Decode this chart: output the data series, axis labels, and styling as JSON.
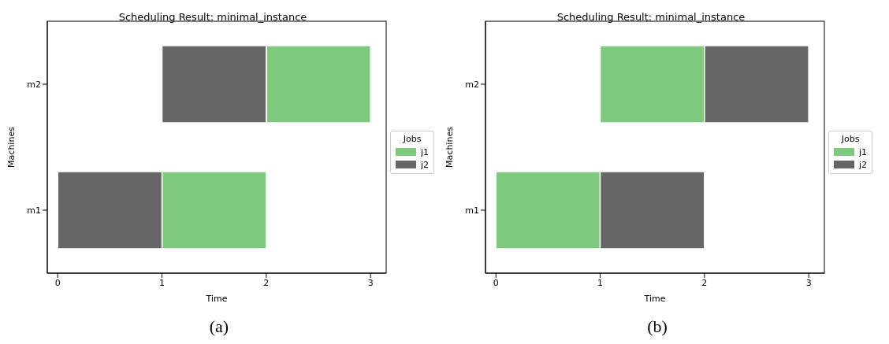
{
  "chart_data": [
    {
      "type": "bar",
      "orientation": "horizontal",
      "title": "Scheduling Result: minimal_instance",
      "xlabel": "Time",
      "ylabel": "Machines",
      "legend_title": "Jobs",
      "legend": "right",
      "categories": [
        "m2",
        "m1"
      ],
      "xlim": [
        -0.1,
        3.15
      ],
      "xticks": [
        0,
        1,
        2,
        3
      ],
      "annotations": [
        "(a)"
      ],
      "series": [
        {
          "name": "j1",
          "color": "#7fc97f",
          "base": [
            2,
            1
          ],
          "values": [
            1,
            1
          ]
        },
        {
          "name": "j2",
          "color": "#666666",
          "base": [
            1,
            0
          ],
          "values": [
            1,
            1
          ]
        }
      ]
    },
    {
      "type": "bar",
      "orientation": "horizontal",
      "title": "Scheduling Result: minimal_instance",
      "xlabel": "Time",
      "ylabel": "Machines",
      "legend_title": "Jobs",
      "legend": "right",
      "categories": [
        "m2",
        "m1"
      ],
      "xlim": [
        -0.1,
        3.15
      ],
      "xticks": [
        0,
        1,
        2,
        3
      ],
      "annotations": [
        "(b)"
      ],
      "series": [
        {
          "name": "j1",
          "color": "#7fc97f",
          "base": [
            1,
            0
          ],
          "values": [
            1,
            1
          ]
        },
        {
          "name": "j2",
          "color": "#666666",
          "base": [
            2,
            1
          ],
          "values": [
            1,
            1
          ]
        }
      ]
    }
  ]
}
